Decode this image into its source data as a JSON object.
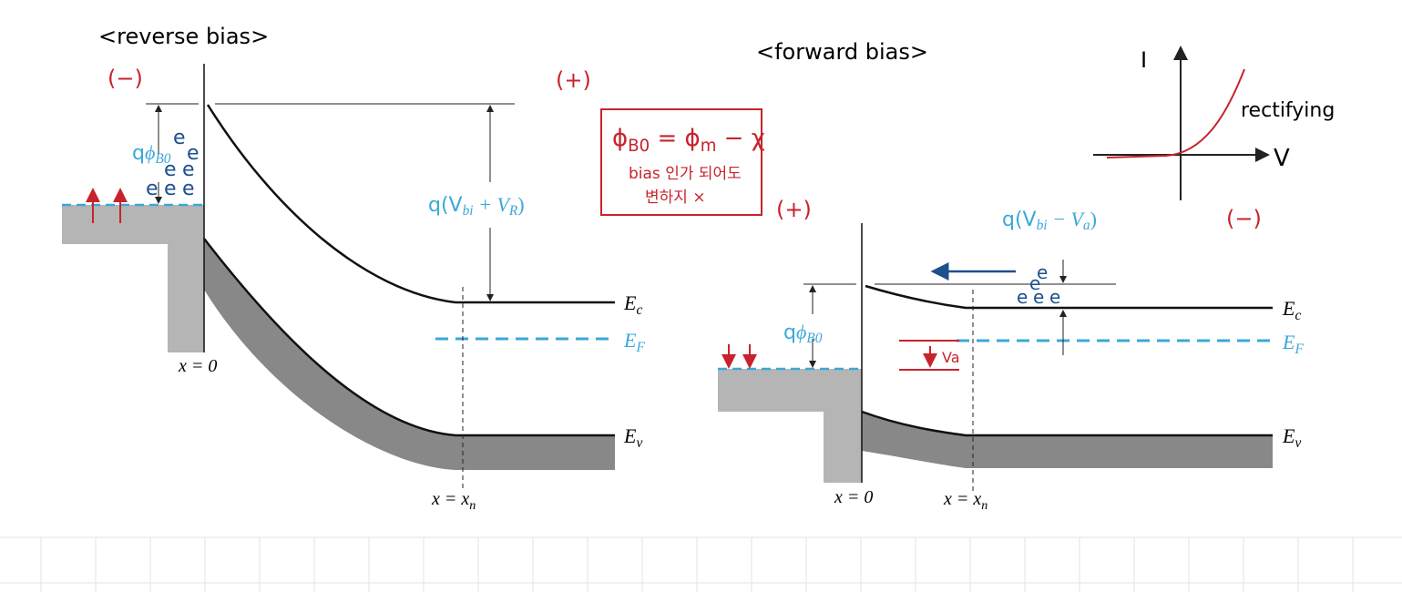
{
  "reverse_bias": {
    "title": "<reverse bias>",
    "metal_sign": "(−)",
    "semi_sign": "(+)",
    "barrier_label": [
      "q",
      "ϕ",
      "B0"
    ],
    "potential_label": [
      "q(V",
      "bi",
      " + V",
      "R",
      ")"
    ],
    "electrons": [
      "e",
      "e",
      "e",
      "e",
      "e",
      "e",
      "e"
    ],
    "Ec": [
      "E",
      "c"
    ],
    "EF": [
      "E",
      "F"
    ],
    "Ev": [
      "E",
      "v"
    ],
    "x0": "x = 0",
    "xn": [
      "x = x",
      "n"
    ]
  },
  "note": {
    "formula": [
      "ϕ",
      "B0",
      " = ϕ",
      "m",
      " − χ"
    ],
    "lines": [
      "bias 인가 되어도",
      "변하지 ×"
    ]
  },
  "iv_graph": {
    "y_label": "I",
    "x_label": "V",
    "label": "rectifying"
  },
  "forward_bias": {
    "title": "<forward bias>",
    "metal_sign": "(+)",
    "semi_sign": "(−)",
    "barrier_label": [
      "q",
      "ϕ",
      "B0"
    ],
    "potential_label": [
      "q(V",
      "bi",
      " − V",
      "a",
      ")"
    ],
    "applied_label": "Va",
    "electrons": [
      "e",
      "e",
      "e",
      "e",
      "e"
    ],
    "Ec": [
      "E",
      "c"
    ],
    "EF": [
      "E",
      "F"
    ],
    "Ev": [
      "E",
      "v"
    ],
    "x0": "x = 0",
    "xn": [
      "x = x",
      "n"
    ]
  }
}
